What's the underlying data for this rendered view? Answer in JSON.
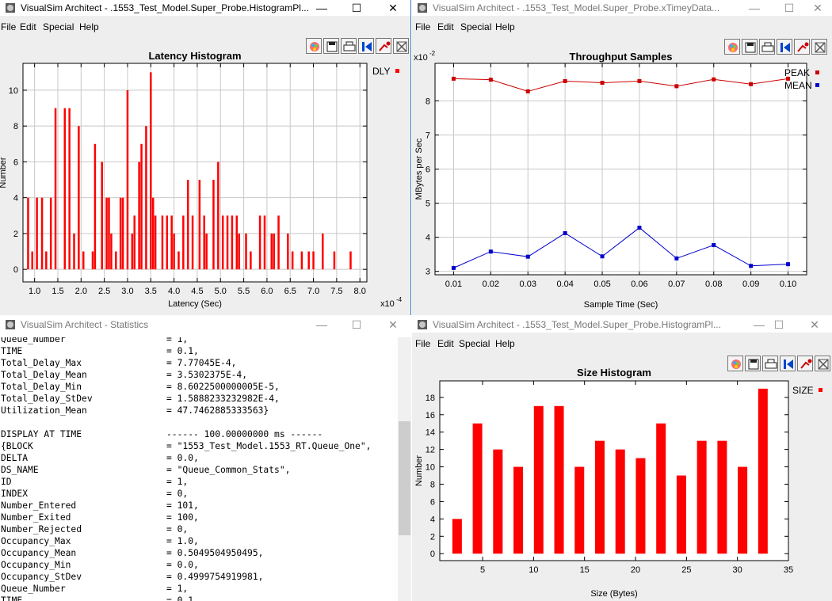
{
  "windows": {
    "latency": {
      "title": "VisualSim Architect - .1553_Test_Model.Super_Probe.HistogramPl...",
      "menu": [
        "File",
        "Edit",
        "Special",
        "Help"
      ],
      "controls": {
        "minimize": "—",
        "maximize": "☐",
        "close": "✕"
      }
    },
    "throughput": {
      "title": "VisualSim Architect - .1553_Test_Model.Super_Probe.xTimeyData...",
      "menu": [
        "File",
        "Edit",
        "Special",
        "Help"
      ],
      "controls": {
        "minimize": "—",
        "maximize": "☐",
        "close": "✕"
      }
    },
    "statistics": {
      "title": "VisualSim Architect - Statistics",
      "controls": {
        "minimize": "—",
        "maximize": "☐",
        "close": "✕"
      }
    },
    "size": {
      "title": "VisualSim Architect - .1553_Test_Model.Super_Probe.HistogramPl...",
      "menu": [
        "File",
        "Edit",
        "Special",
        "Help"
      ],
      "controls": {
        "minimize": "—",
        "maximize": "☐",
        "close": "✕"
      }
    }
  },
  "toolbar_icons": [
    "palette-icon",
    "save-icon",
    "print-icon",
    "reset-axes-icon",
    "format-icon",
    "fill-icon"
  ],
  "statistics": {
    "lines": [
      {
        "k": "Queue_Number",
        "v": "= 1,"
      },
      {
        "k": "TIME",
        "v": "= 0.1,"
      },
      {
        "k": "Total_Delay_Max",
        "v": "= 7.77045E-4,"
      },
      {
        "k": "Total_Delay_Mean",
        "v": "= 3.5302375E-4,"
      },
      {
        "k": "Total_Delay_Min",
        "v": "= 8.6022500000005E-5,"
      },
      {
        "k": "Total_Delay_StDev",
        "v": "= 1.5888233232982E-4,"
      },
      {
        "k": "Utilization_Mean",
        "v": "= 47.7462885333563}"
      },
      {
        "k": "",
        "v": ""
      },
      {
        "k": "DISPLAY AT TIME",
        "v": "------ 100.00000000 ms ------"
      },
      {
        "k": "{BLOCK",
        "v": "= \"1553_Test_Model.1553_RT.Queue_One\","
      },
      {
        "k": "DELTA",
        "v": "= 0.0,"
      },
      {
        "k": "DS_NAME",
        "v": "= \"Queue_Common_Stats\","
      },
      {
        "k": "ID",
        "v": "= 1,"
      },
      {
        "k": "INDEX",
        "v": "= 0,"
      },
      {
        "k": "Number_Entered",
        "v": "= 101,"
      },
      {
        "k": "Number_Exited",
        "v": "= 100,"
      },
      {
        "k": "Number_Rejected",
        "v": "= 0,"
      },
      {
        "k": "Occupancy_Max",
        "v": "= 1.0,"
      },
      {
        "k": "Occupancy_Mean",
        "v": "= 0.5049504950495,"
      },
      {
        "k": "Occupancy_Min",
        "v": "= 0.0,"
      },
      {
        "k": "Occupancy_StDev",
        "v": "= 0.4999754919981,"
      },
      {
        "k": "Queue_Number",
        "v": "= 1,"
      },
      {
        "k": "TIME",
        "v": "= 0.1,"
      }
    ]
  },
  "chart_data": [
    {
      "type": "bar",
      "title": "Latency Histogram",
      "xlabel": "Latency (Sec)",
      "ylabel": "Number",
      "x_exponent": "x10",
      "x_exponent_power": "-4",
      "legend": [
        {
          "name": "DLY",
          "color": "#ff0000"
        }
      ],
      "legend_position": "top-right",
      "grid": true,
      "xlim": [
        0.75,
        8.15
      ],
      "ylim": [
        -0.7,
        11.5
      ],
      "xticks": [
        "1.0",
        "1.5",
        "2.0",
        "2.5",
        "3.0",
        "3.5",
        "4.0",
        "4.5",
        "5.0",
        "5.5",
        "6.0",
        "6.5",
        "7.0",
        "7.5",
        "8.0"
      ],
      "yticks": [
        "0",
        "2",
        "4",
        "6",
        "8",
        "10"
      ],
      "x": [
        0.86,
        0.95,
        1.05,
        1.16,
        1.25,
        1.35,
        1.45,
        1.65,
        1.75,
        1.85,
        1.95,
        2.05,
        2.25,
        2.3,
        2.45,
        2.55,
        2.6,
        2.65,
        2.75,
        2.85,
        2.9,
        3.0,
        3.1,
        3.15,
        3.25,
        3.3,
        3.4,
        3.5,
        3.55,
        3.6,
        3.75,
        3.85,
        3.95,
        4.0,
        4.1,
        4.2,
        4.3,
        4.4,
        4.55,
        4.65,
        4.7,
        4.85,
        4.95,
        5.05,
        5.15,
        5.25,
        5.35,
        5.4,
        5.55,
        5.65,
        5.85,
        5.95,
        6.1,
        6.15,
        6.25,
        6.45,
        6.55,
        6.75,
        6.9,
        7.0,
        7.2,
        7.45,
        7.8
      ],
      "values": [
        4,
        1,
        4,
        4,
        1,
        4,
        9,
        9,
        9,
        2,
        8,
        1,
        1,
        7,
        6,
        4,
        4,
        2,
        1,
        4,
        4,
        10,
        2,
        3,
        6,
        7,
        8,
        11,
        4,
        3,
        3,
        3,
        3,
        2,
        1,
        3,
        5,
        3,
        5,
        3,
        2,
        5,
        6,
        3,
        3,
        3,
        3,
        2,
        2,
        1,
        3,
        3,
        2,
        2,
        3,
        2,
        1,
        1,
        1,
        1,
        2,
        1,
        1
      ],
      "color": "#ff0000"
    },
    {
      "type": "line",
      "title": "Throughput Samples",
      "xlabel": "Sample Time (Sec)",
      "ylabel": "MBytes per Sec",
      "y_exponent": "x10",
      "y_exponent_power": "-2",
      "grid": true,
      "legend_position": "top-right",
      "xlim": [
        0.005,
        0.105
      ],
      "ylim": [
        2.9,
        9.1
      ],
      "xticks": [
        "0.01",
        "0.02",
        "0.03",
        "0.04",
        "0.05",
        "0.06",
        "0.07",
        "0.08",
        "0.09",
        "0.10"
      ],
      "yticks": [
        "3",
        "4",
        "5",
        "6",
        "7",
        "8"
      ],
      "x": [
        0.01,
        0.02,
        0.03,
        0.04,
        0.05,
        0.06,
        0.07,
        0.08,
        0.09,
        0.1
      ],
      "series": [
        {
          "name": "PEAK",
          "color": "#cc0000",
          "values": [
            8.65,
            8.62,
            8.28,
            8.58,
            8.53,
            8.58,
            8.43,
            8.63,
            8.49,
            8.65
          ]
        },
        {
          "name": "MEAN",
          "color": "#0000cc",
          "values": [
            3.1,
            3.58,
            3.43,
            4.12,
            3.44,
            4.28,
            3.38,
            3.77,
            3.16,
            3.21
          ]
        }
      ]
    },
    {
      "type": "bar",
      "title": "Size Histogram",
      "xlabel": "Size (Bytes)",
      "ylabel": "Number",
      "legend": [
        {
          "name": "SIZE",
          "color": "#ff0000"
        }
      ],
      "legend_position": "top-right",
      "grid": false,
      "xlim": [
        0.8,
        35.0
      ],
      "ylim": [
        -0.8,
        19.9
      ],
      "xticks": [
        "5",
        "10",
        "15",
        "20",
        "25",
        "30",
        "35"
      ],
      "yticks": [
        "0",
        "2",
        "4",
        "6",
        "8",
        "10",
        "12",
        "14",
        "16",
        "18"
      ],
      "x": [
        2.5,
        4.5,
        6.5,
        8.5,
        10.5,
        12.5,
        14.5,
        16.5,
        18.5,
        20.5,
        22.5,
        24.5,
        26.5,
        28.5,
        30.5,
        32.5
      ],
      "values": [
        4,
        15,
        12,
        10,
        17,
        17,
        10,
        13,
        12,
        11,
        15,
        9,
        13,
        13,
        10,
        19
      ],
      "color": "#ff0000"
    }
  ]
}
